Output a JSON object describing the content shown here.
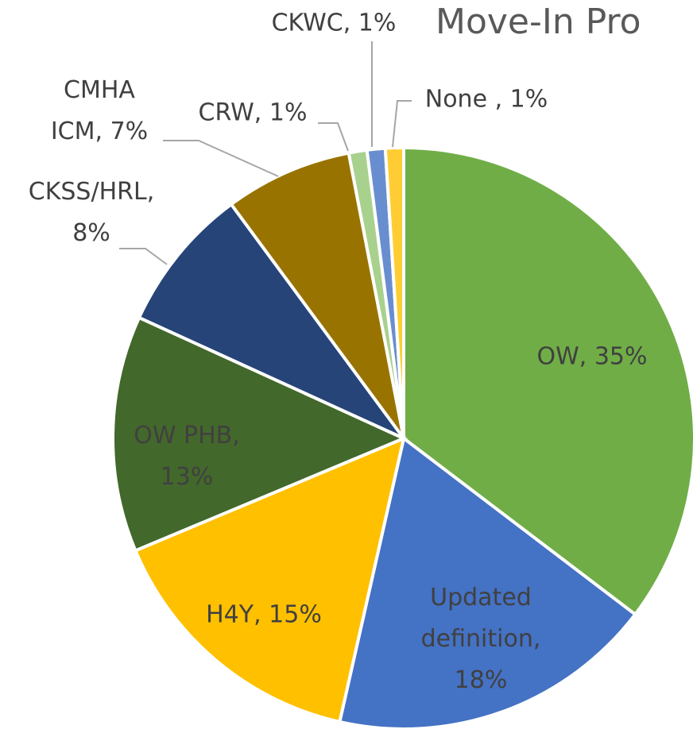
{
  "chart_data": {
    "type": "pie",
    "title": "Move-In Pro",
    "values": [
      35,
      18,
      15,
      13,
      8,
      7,
      1,
      1,
      1
    ],
    "value_labels": [
      "OW, 35%",
      "Updated\ndefinition,\n18%",
      "H4Y, 15%",
      "OW PHB,\n13%",
      "CKSS/HRL,\n8%",
      "CMHA\nICM, 7%",
      "CRW, 1%",
      "CKWC, 1%",
      "None , 1%"
    ],
    "colors": [
      "#70ad47",
      "#4472c4",
      "#ffc000",
      "#43682b",
      "#264478",
      "#997300",
      "#a9d18e",
      "#698ed0",
      "#ffcd33"
    ]
  }
}
